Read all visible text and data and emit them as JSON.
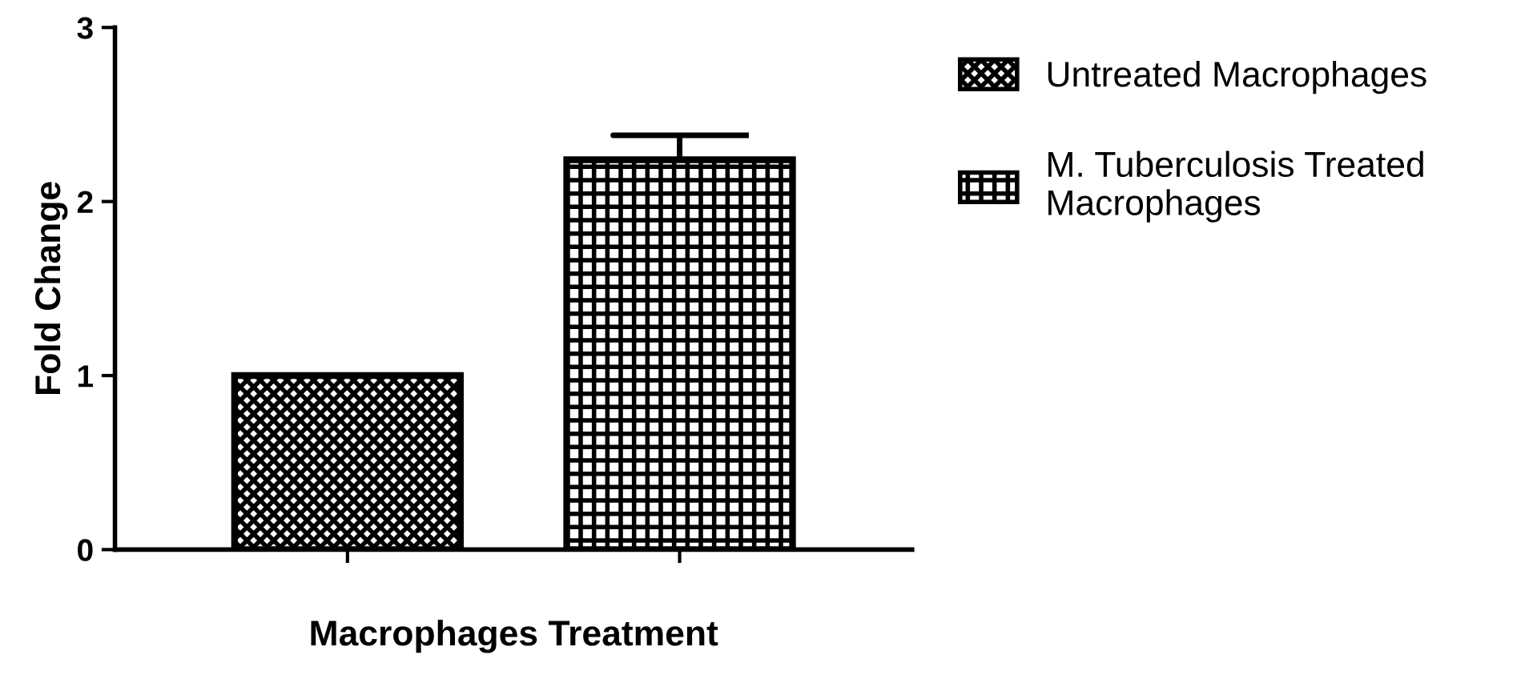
{
  "chart_data": {
    "type": "bar",
    "xlabel": "Macrophages Treatment",
    "ylabel": "Fold Change",
    "categories": [
      null,
      null
    ],
    "series": [
      {
        "name": "Untreated Macrophages",
        "color": "#000000",
        "values": [
          1.0,
          null
        ]
      },
      {
        "name": "M. Tuberculosis Treated\nMacrophages",
        "color": "#000000",
        "values": [
          null,
          2.24
        ],
        "errors": [
          null,
          [
            2.24,
            2.38
          ]
        ]
      }
    ],
    "ylim": [
      0,
      3
    ],
    "yticks": [
      0,
      1,
      2,
      3
    ],
    "grid": false,
    "legend": "top right"
  }
}
